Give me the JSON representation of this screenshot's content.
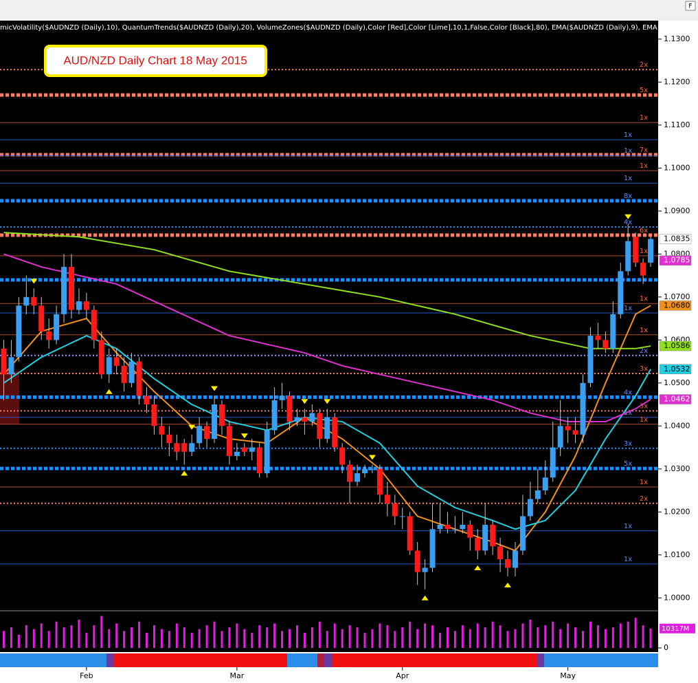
{
  "chart_data": {
    "type": "candlestick",
    "window_button": "F",
    "indicator_header": "micVolatility($AUDNZD (Daily),10), QuantumTrends($AUDNZD (Daily),20), VolumeZones($AUDNZD (Daily),Color [Red],Color [Lime],10,1,False,Color [Black],80), EMA($AUDNZD (Daily),9), EMA",
    "annotation": "AUD/NZD Daily Chart 18 May 2015",
    "up_color": "#3a9ff0",
    "down_color": "#ff1a1a",
    "wick_color": "#c8c8c8",
    "xlim": [
      -0.5,
      87.0
    ],
    "ylim": [
      0.997,
      1.1343
    ],
    "yticks": [
      {
        "value": 1.13,
        "label": "1.1300"
      },
      {
        "value": 1.12,
        "label": "1.1200"
      },
      {
        "value": 1.11,
        "label": "1.1100"
      },
      {
        "value": 1.1,
        "label": "1.1000"
      },
      {
        "value": 1.09,
        "label": "1.0900"
      },
      {
        "value": 1.08,
        "label": "1.0800"
      },
      {
        "value": 1.07,
        "label": "1.0700"
      },
      {
        "value": 1.06,
        "label": "1.0600"
      },
      {
        "value": 1.05,
        "label": "1.0500"
      },
      {
        "value": 1.04,
        "label": "1.0400"
      },
      {
        "value": 1.03,
        "label": "1.0300"
      },
      {
        "value": 1.02,
        "label": "1.0200"
      },
      {
        "value": 1.01,
        "label": "1.0100"
      },
      {
        "value": 1.0,
        "label": "1.0000"
      }
    ],
    "xticks": [
      {
        "value": 11,
        "label": "Feb"
      },
      {
        "value": 31,
        "label": "Mar"
      },
      {
        "value": 53,
        "label": "Apr"
      },
      {
        "value": 75,
        "label": "May"
      }
    ],
    "ohlc": [
      [
        1.058,
        1.06,
        1.046,
        1.052
      ],
      [
        1.052,
        1.06,
        1.05,
        1.056
      ],
      [
        1.056,
        1.07,
        1.055,
        1.068
      ],
      [
        1.068,
        1.075,
        1.066,
        1.07
      ],
      [
        1.07,
        1.072,
        1.066,
        1.068
      ],
      [
        1.068,
        1.07,
        1.06,
        1.062
      ],
      [
        1.062,
        1.065,
        1.058,
        1.06
      ],
      [
        1.06,
        1.068,
        1.059,
        1.066
      ],
      [
        1.066,
        1.08,
        1.064,
        1.077
      ],
      [
        1.077,
        1.08,
        1.065,
        1.067
      ],
      [
        1.067,
        1.072,
        1.066,
        1.069
      ],
      [
        1.069,
        1.071,
        1.065,
        1.067
      ],
      [
        1.067,
        1.068,
        1.058,
        1.06
      ],
      [
        1.06,
        1.062,
        1.051,
        1.052
      ],
      [
        1.052,
        1.058,
        1.05,
        1.056
      ],
      [
        1.056,
        1.058,
        1.052,
        1.054
      ],
      [
        1.054,
        1.056,
        1.048,
        1.05
      ],
      [
        1.05,
        1.057,
        1.049,
        1.055
      ],
      [
        1.055,
        1.056,
        1.045,
        1.047
      ],
      [
        1.047,
        1.049,
        1.043,
        1.045
      ],
      [
        1.045,
        1.047,
        1.038,
        1.04
      ],
      [
        1.04,
        1.042,
        1.035,
        1.038
      ],
      [
        1.038,
        1.04,
        1.033,
        1.036
      ],
      [
        1.036,
        1.038,
        1.032,
        1.034
      ],
      [
        1.036,
        1.037,
        1.031,
        1.034
      ],
      [
        1.034,
        1.038,
        1.033,
        1.036
      ],
      [
        1.036,
        1.042,
        1.035,
        1.04
      ],
      [
        1.04,
        1.041,
        1.035,
        1.037
      ],
      [
        1.037,
        1.047,
        1.036,
        1.045
      ],
      [
        1.045,
        1.046,
        1.038,
        1.04
      ],
      [
        1.04,
        1.041,
        1.031,
        1.033
      ],
      [
        1.033,
        1.036,
        1.032,
        1.034
      ],
      [
        1.035,
        1.036,
        1.033,
        1.034
      ],
      [
        1.034,
        1.037,
        1.032,
        1.035
      ],
      [
        1.035,
        1.036,
        1.028,
        1.029
      ],
      [
        1.029,
        1.041,
        1.028,
        1.039
      ],
      [
        1.039,
        1.049,
        1.038,
        1.046
      ],
      [
        1.046,
        1.05,
        1.044,
        1.047
      ],
      [
        1.047,
        1.048,
        1.039,
        1.041
      ],
      [
        1.041,
        1.044,
        1.04,
        1.042
      ],
      [
        1.042,
        1.044,
        1.038,
        1.041
      ],
      [
        1.041,
        1.045,
        1.04,
        1.043
      ],
      [
        1.043,
        1.044,
        1.035,
        1.037
      ],
      [
        1.037,
        1.044,
        1.036,
        1.042
      ],
      [
        1.042,
        1.043,
        1.034,
        1.035
      ],
      [
        1.035,
        1.036,
        1.029,
        1.031
      ],
      [
        1.031,
        1.032,
        1.022,
        1.027
      ],
      [
        1.027,
        1.031,
        1.026,
        1.029
      ],
      [
        1.029,
        1.031,
        1.028,
        1.03
      ],
      [
        1.03,
        1.031,
        1.029,
        1.03
      ],
      [
        1.03,
        1.031,
        1.022,
        1.024
      ],
      [
        1.024,
        1.027,
        1.019,
        1.022
      ],
      [
        1.022,
        1.024,
        1.017,
        1.019
      ],
      [
        1.019,
        1.021,
        1.016,
        1.019
      ],
      [
        1.019,
        1.02,
        1.01,
        1.011
      ],
      [
        1.011,
        1.013,
        1.003,
        1.006
      ],
      [
        1.006,
        1.009,
        1.002,
        1.007
      ],
      [
        1.007,
        1.022,
        1.006,
        1.016
      ],
      [
        1.016,
        1.022,
        1.015,
        1.017
      ],
      [
        1.017,
        1.02,
        1.015,
        1.016
      ],
      [
        1.016,
        1.019,
        1.015,
        1.016
      ],
      [
        1.016,
        1.02,
        1.015,
        1.017
      ],
      [
        1.017,
        1.018,
        1.011,
        1.014
      ],
      [
        1.014,
        1.016,
        1.009,
        1.011
      ],
      [
        1.011,
        1.022,
        1.01,
        1.017
      ],
      [
        1.017,
        1.018,
        1.01,
        1.012
      ],
      [
        1.012,
        1.014,
        1.006,
        1.009
      ],
      [
        1.009,
        1.011,
        1.005,
        1.007
      ],
      [
        1.007,
        1.013,
        1.005,
        1.011
      ],
      [
        1.011,
        1.024,
        1.01,
        1.019
      ],
      [
        1.019,
        1.027,
        1.018,
        1.023
      ],
      [
        1.023,
        1.03,
        1.022,
        1.025
      ],
      [
        1.025,
        1.032,
        1.024,
        1.028
      ],
      [
        1.028,
        1.041,
        1.027,
        1.035
      ],
      [
        1.035,
        1.046,
        1.033,
        1.04
      ],
      [
        1.04,
        1.042,
        1.036,
        1.039
      ],
      [
        1.039,
        1.042,
        1.036,
        1.038
      ],
      [
        1.038,
        1.052,
        1.036,
        1.05
      ],
      [
        1.05,
        1.063,
        1.049,
        1.061
      ],
      [
        1.061,
        1.064,
        1.058,
        1.06
      ],
      [
        1.06,
        1.062,
        1.057,
        1.058
      ],
      [
        1.058,
        1.069,
        1.057,
        1.066
      ],
      [
        1.066,
        1.078,
        1.065,
        1.076
      ],
      [
        1.076,
        1.087,
        1.075,
        1.083
      ],
      [
        1.084,
        1.085,
        1.077,
        1.078
      ],
      [
        1.078,
        1.079,
        1.073,
        1.075
      ],
      [
        1.078,
        1.084,
        1.077,
        1.0835
      ]
    ],
    "series": [
      {
        "name": "EMA 9",
        "color": "#f0901e",
        "x": [
          0,
          5,
          11,
          15,
          20,
          25,
          30,
          35,
          40,
          45,
          50,
          55,
          60,
          65,
          68,
          72,
          76,
          80,
          84,
          86
        ],
        "values": [
          1.052,
          1.062,
          1.065,
          1.057,
          1.048,
          1.04,
          1.037,
          1.036,
          1.042,
          1.037,
          1.03,
          1.019,
          1.016,
          1.013,
          1.011,
          1.02,
          1.033,
          1.05,
          1.066,
          1.068
        ]
      },
      {
        "name": "EMA 20",
        "color": "#20d0e0",
        "x": [
          0,
          5,
          11,
          15,
          20,
          25,
          30,
          35,
          40,
          45,
          50,
          55,
          60,
          65,
          68,
          72,
          76,
          80,
          84,
          86
        ],
        "values": [
          1.05,
          1.056,
          1.061,
          1.058,
          1.051,
          1.045,
          1.041,
          1.039,
          1.042,
          1.041,
          1.036,
          1.026,
          1.021,
          1.018,
          1.016,
          1.018,
          1.025,
          1.037,
          1.047,
          1.0532
        ]
      },
      {
        "name": "EMA 50",
        "color": "#e030d0",
        "x": [
          0,
          5,
          10,
          15,
          20,
          25,
          30,
          35,
          40,
          45,
          50,
          55,
          60,
          65,
          70,
          75,
          80,
          84,
          86
        ],
        "values": [
          1.08,
          1.077,
          1.075,
          1.073,
          1.069,
          1.065,
          1.061,
          1.059,
          1.057,
          1.054,
          1.052,
          1.05,
          1.048,
          1.046,
          1.043,
          1.041,
          1.041,
          1.044,
          1.0462
        ]
      },
      {
        "name": "EMA 100",
        "color": "#90e020",
        "x": [
          0,
          10,
          20,
          30,
          40,
          50,
          60,
          70,
          78,
          84,
          86
        ],
        "values": [
          1.085,
          1.084,
          1.081,
          1.076,
          1.073,
          1.07,
          1.066,
          1.061,
          1.058,
          1.058,
          1.0586
        ]
      }
    ],
    "levels": [
      {
        "value": 1.1229,
        "style": "dotted",
        "color": "#ff7f66",
        "label": "2x"
      },
      {
        "value": 1.117,
        "style": "thick",
        "color": "#ff7f66",
        "label": "5x"
      },
      {
        "value": 1.1106,
        "style": "thin",
        "color": "#b05030",
        "label": "1x"
      },
      {
        "value": 1.1066,
        "style": "thin",
        "color": "#2858c8",
        "label": "1x"
      },
      {
        "value": 1.1031,
        "style": "thick",
        "color": "#ff7f66",
        "label": "7x"
      },
      {
        "value": 1.1029,
        "style": "thin",
        "color": "#2858c8",
        "label": "1x"
      },
      {
        "value": 1.0994,
        "style": "thin",
        "color": "#b05030",
        "label": "1x"
      },
      {
        "value": 1.0965,
        "style": "thin",
        "color": "#2858c8",
        "label": "1x"
      },
      {
        "value": 1.0924,
        "style": "thick",
        "color": "#1e90ff",
        "label": "8x"
      },
      {
        "value": 1.0863,
        "style": "dotted",
        "color": "#1e90ff",
        "label": "4x"
      },
      {
        "value": 1.0844,
        "style": "thick",
        "color": "#ff7f66",
        "label": "6x"
      },
      {
        "value": 1.0796,
        "style": "thin",
        "color": "#b05030",
        "label": "1x"
      },
      {
        "value": 1.074,
        "style": "thick",
        "color": "#1e90ff"
      },
      {
        "value": 1.0685,
        "style": "thin",
        "color": "#b05030",
        "label": "1x"
      },
      {
        "value": 1.0663,
        "style": "thin",
        "color": "#2858c8",
        "label": "1x"
      },
      {
        "value": 1.0612,
        "style": "thin",
        "color": "#b05030",
        "label": "1x"
      },
      {
        "value": 1.0564,
        "style": "dotted",
        "color": "#9999ff",
        "label": "2x"
      },
      {
        "value": 1.0522,
        "style": "dotted",
        "color": "#ff7f66",
        "label": "3x"
      },
      {
        "value": 1.0467,
        "style": "thick",
        "color": "#1e90ff",
        "label": "4x"
      },
      {
        "value": 1.0435,
        "style": "dotted",
        "color": "#ff7f66",
        "label": "3x"
      },
      {
        "value": 1.042,
        "style": "thin",
        "color": "#2858c8",
        "label": "1x"
      },
      {
        "value": 1.0404,
        "style": "thin",
        "color": "#b05030",
        "label": "1x"
      },
      {
        "value": 1.0348,
        "style": "dotted",
        "color": "#1e90ff",
        "label": "3x"
      },
      {
        "value": 1.0301,
        "style": "thick",
        "color": "#1e90ff",
        "label": "5x"
      },
      {
        "value": 1.0258,
        "style": "thin",
        "color": "#b05030",
        "label": "1x"
      },
      {
        "value": 1.022,
        "style": "dotted",
        "color": "#ff7f66",
        "label": "2x"
      },
      {
        "value": 1.0156,
        "style": "thin",
        "color": "#2858c8",
        "label": "1x"
      },
      {
        "value": 1.0079,
        "style": "thin",
        "color": "#2858c8",
        "label": "1x"
      }
    ],
    "signals_down": [
      4,
      25,
      28,
      32,
      40,
      43,
      49,
      83
    ],
    "signals_up": [
      14,
      24,
      56,
      63,
      67
    ],
    "signal_color": "#ffee00",
    "price_badges": [
      {
        "value": 1.0835,
        "label": "1.0835",
        "color": "#ffffff"
      },
      {
        "value": 1.0785,
        "label": "1.0785",
        "color": "#e030d0"
      },
      {
        "value": 1.068,
        "label": "1.0680",
        "color": "#f0901e"
      },
      {
        "value": 1.0586,
        "label": "1.0586",
        "color": "#90e020"
      },
      {
        "value": 1.0532,
        "label": "1.0532",
        "color": "#20d0e0"
      },
      {
        "value": 1.0462,
        "label": "1.0462",
        "color": "#e030d0"
      }
    ],
    "volume": {
      "color": "#e020e0",
      "ylim": [
        0,
        19000
      ],
      "yticks": [
        0
      ],
      "values": [
        9000,
        11000,
        7000,
        12000,
        10000,
        13000,
        9000,
        14000,
        11000,
        12000,
        15000,
        8000,
        12000,
        17000,
        10000,
        13000,
        9000,
        11000,
        14000,
        8000,
        12000,
        10000,
        9000,
        13000,
        11000,
        8000,
        10000,
        12000,
        14000,
        9000,
        11000,
        13000,
        10000,
        8000,
        12000,
        11000,
        13000,
        9000,
        10000,
        12000,
        8000,
        11000,
        14000,
        9000,
        13000,
        10000,
        12000,
        11000,
        8000,
        10000,
        13000,
        12000,
        9000,
        11000,
        14000,
        10000,
        13000,
        12000,
        8000,
        11000,
        9000,
        12000,
        10000,
        13000,
        11000,
        14000,
        12000,
        9000,
        10000,
        13000,
        15000,
        11000,
        12000,
        14000,
        10000,
        13000,
        11000,
        9000,
        14000,
        12000,
        10000,
        11000,
        13000,
        14000,
        16000,
        12000,
        10317
      ],
      "last": {
        "value": 10317,
        "label": "10317M"
      }
    }
  }
}
